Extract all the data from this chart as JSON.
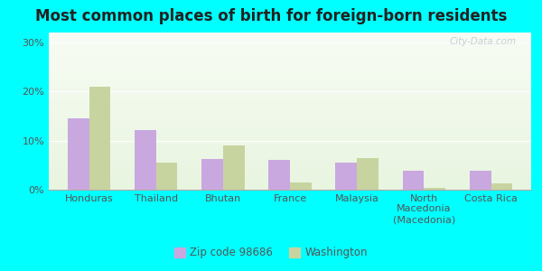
{
  "title": "Most common places of birth for foreign-born residents",
  "categories": [
    "Honduras",
    "Thailand",
    "Bhutan",
    "France",
    "Malaysia",
    "North\nMacedonia\n(Macedonia)",
    "Costa Rica"
  ],
  "zip_values": [
    14.5,
    12.2,
    6.2,
    6.0,
    5.5,
    3.8,
    3.8
  ],
  "wa_values": [
    21.0,
    5.5,
    9.0,
    1.5,
    6.5,
    0.4,
    1.3
  ],
  "zip_color": "#c9a8e0",
  "wa_color": "#c8d4a0",
  "bg_top": "#e8f5e0",
  "bg_bottom": "#f5fbf0",
  "outer_background": "#00ffff",
  "ylim": [
    0,
    32
  ],
  "yticks": [
    0,
    10,
    20,
    30
  ],
  "legend_zip": "Zip code 98686",
  "legend_wa": "Washington",
  "title_fontsize": 12,
  "tick_fontsize": 8,
  "legend_fontsize": 8.5,
  "bar_width": 0.32
}
